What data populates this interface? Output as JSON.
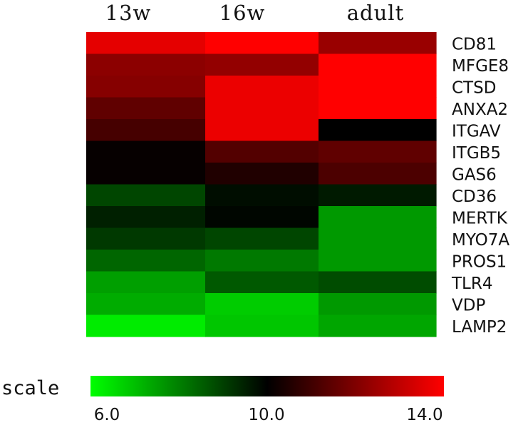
{
  "chart_data": {
    "type": "heatmap",
    "title": "",
    "columns": [
      "13w",
      "16w",
      "adult"
    ],
    "rows": [
      "CD81",
      "MFGE8",
      "CTSD",
      "ANXA2",
      "ITGAV",
      "ITGB5",
      "GAS6",
      "CD36",
      "MERTK",
      "MYO7A",
      "PROS1",
      "TLR4",
      "VDP",
      "LAMP2"
    ],
    "values": [
      [
        13.6,
        14.6,
        12.4
      ],
      [
        12.2,
        12.3,
        14.2
      ],
      [
        12.1,
        13.7,
        14.2
      ],
      [
        11.5,
        13.7,
        14.2
      ],
      [
        11.1,
        13.7,
        10.0
      ],
      [
        10.1,
        11.3,
        11.5
      ],
      [
        10.1,
        10.5,
        11.2
      ],
      [
        8.9,
        9.8,
        9.6
      ],
      [
        9.5,
        9.9,
        7.6
      ],
      [
        9.1,
        8.9,
        7.6
      ],
      [
        8.4,
        8.1,
        7.6
      ],
      [
        7.5,
        8.6,
        8.8
      ],
      [
        7.3,
        6.8,
        7.6
      ],
      [
        6.3,
        6.9,
        7.4
      ]
    ],
    "scale": {
      "label": "scale",
      "min": 6.0,
      "mid": 10.0,
      "max": 14.0,
      "ticks": [
        "6.0",
        "10.0",
        "14.0"
      ],
      "colors": {
        "low": "#00ff00",
        "mid": "#000000",
        "high": "#ff0000"
      }
    }
  }
}
